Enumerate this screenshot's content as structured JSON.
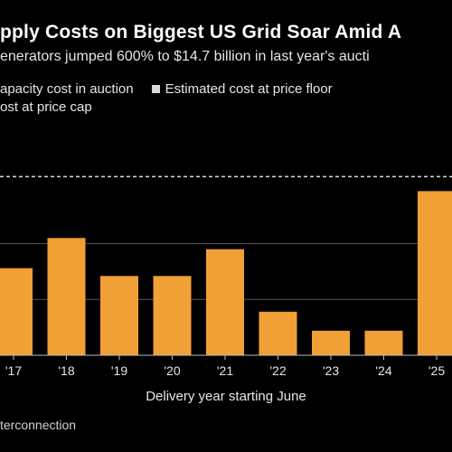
{
  "header": {
    "title": "pply Costs on Biggest US Grid Soar Amid A",
    "subtitle": "enerators jumped 600% to $14.7 billion in last year's aucti"
  },
  "legend": {
    "items": [
      {
        "label": "apacity cost in auction",
        "color": "#f0a035"
      },
      {
        "label": "Estimated cost at price floor",
        "color": "#d9d9d9"
      },
      {
        "label": "ost at price cap",
        "color": "#f0a035"
      }
    ]
  },
  "source": "terconnection",
  "colors": {
    "bar": "#f0a035",
    "gridline": "#555555",
    "dashed_line": "#d9d9d9",
    "background": "#000000"
  },
  "chart_data": {
    "type": "bar",
    "categories": [
      "'17",
      "'18",
      "'19",
      "'20",
      "'21",
      "'22",
      "'23",
      "'24",
      "'25"
    ],
    "values": [
      7.8,
      10.5,
      7.1,
      7.1,
      9.5,
      3.9,
      2.2,
      2.2,
      14.7
    ],
    "xlabel": "Delivery year starting June",
    "ylim": [
      0,
      17
    ],
    "grid": true,
    "reference_line": 16.0,
    "legend_position": "top-left"
  }
}
